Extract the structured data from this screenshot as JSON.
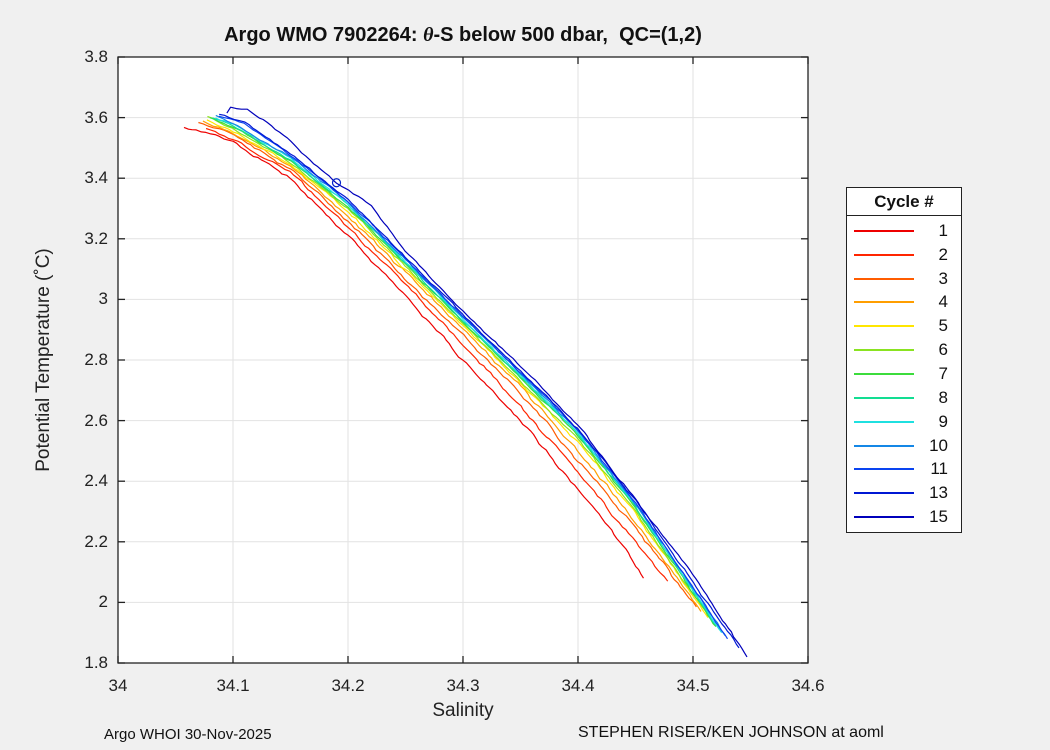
{
  "figure": {
    "background": "#f0f0f0",
    "title": {
      "prefix": "Argo WMO 7902264: ",
      "theta": "θ",
      "suffix": "-S below 500 dbar,  QC=(1,2)"
    },
    "footer_left": "Argo WHOI 30-Nov-2025",
    "footer_right": "STEPHEN RISER/KEN JOHNSON at aoml"
  },
  "chart_data": {
    "type": "line",
    "title": "Argo WMO 7902264: θ-S below 500 dbar,  QC=(1,2)",
    "xlabel": "Salinity",
    "ylabel": "Potential Temperature (˚C)",
    "xlim": [
      34,
      34.6
    ],
    "ylim": [
      1.8,
      3.8
    ],
    "xticks": [
      34,
      34.1,
      34.2,
      34.3,
      34.4,
      34.5,
      34.6
    ],
    "xtick_labels": [
      "34",
      "34.1",
      "34.2",
      "34.3",
      "34.4",
      "34.5",
      "34.6"
    ],
    "yticks": [
      1.8,
      2,
      2.2,
      2.4,
      2.6,
      2.8,
      3,
      3.2,
      3.4,
      3.6,
      3.8
    ],
    "ytick_labels": [
      "1.8",
      "2",
      "2.2",
      "2.4",
      "2.6",
      "2.8",
      "3",
      "3.2",
      "3.4",
      "3.6",
      "3.8"
    ],
    "grid": true,
    "grid_color": "#e2e2e2",
    "axes_color": "#222222",
    "plot_background": "#ffffff",
    "legend_title": "Cycle #",
    "legend_position": "outside-right",
    "marker": {
      "series_name": "15",
      "x": 34.19,
      "y": 3.385,
      "shape": "open-circle",
      "color": "#0020c8"
    },
    "series": [
      {
        "name": "1",
        "color": "#ee0000",
        "points": [
          [
            34.057,
            3.57
          ],
          [
            34.08,
            3.545
          ],
          [
            34.1,
            3.52
          ],
          [
            34.15,
            3.4
          ],
          [
            34.2,
            3.21
          ],
          [
            34.25,
            3.01
          ],
          [
            34.3,
            2.8
          ],
          [
            34.35,
            2.6
          ],
          [
            34.4,
            2.37
          ],
          [
            34.43,
            2.24
          ],
          [
            34.457,
            2.08
          ]
        ]
      },
      {
        "name": "2",
        "color": "#ff2500",
        "points": [
          [
            34.076,
            3.565
          ],
          [
            34.1,
            3.53
          ],
          [
            34.15,
            3.42
          ],
          [
            34.2,
            3.24
          ],
          [
            34.25,
            3.05
          ],
          [
            34.3,
            2.85
          ],
          [
            34.35,
            2.65
          ],
          [
            34.4,
            2.43
          ],
          [
            34.45,
            2.2
          ],
          [
            34.478,
            2.07
          ]
        ]
      },
      {
        "name": "3",
        "color": "#ff5c00",
        "points": [
          [
            34.07,
            3.585
          ],
          [
            34.1,
            3.545
          ],
          [
            34.15,
            3.43
          ],
          [
            34.2,
            3.26
          ],
          [
            34.25,
            3.07
          ],
          [
            34.3,
            2.88
          ],
          [
            34.35,
            2.69
          ],
          [
            34.4,
            2.47
          ],
          [
            34.45,
            2.245
          ],
          [
            34.503,
            1.985
          ]
        ]
      },
      {
        "name": "4",
        "color": "#ff9e00",
        "points": [
          [
            34.074,
            3.59
          ],
          [
            34.1,
            3.55
          ],
          [
            34.15,
            3.44
          ],
          [
            34.2,
            3.275
          ],
          [
            34.25,
            3.09
          ],
          [
            34.3,
            2.9
          ],
          [
            34.35,
            2.71
          ],
          [
            34.4,
            2.5
          ],
          [
            34.45,
            2.27
          ],
          [
            34.507,
            1.97
          ]
        ]
      },
      {
        "name": "5",
        "color": "#ffe600",
        "points": [
          [
            34.078,
            3.595
          ],
          [
            34.1,
            3.555
          ],
          [
            34.15,
            3.445
          ],
          [
            34.2,
            3.29
          ],
          [
            34.25,
            3.1
          ],
          [
            34.3,
            2.915
          ],
          [
            34.35,
            2.725
          ],
          [
            34.4,
            2.53
          ],
          [
            34.45,
            2.29
          ],
          [
            34.513,
            1.95
          ]
        ]
      },
      {
        "name": "6",
        "color": "#8ae321",
        "points": [
          [
            34.078,
            3.605
          ],
          [
            34.1,
            3.565
          ],
          [
            34.15,
            3.45
          ],
          [
            34.2,
            3.3
          ],
          [
            34.25,
            3.11
          ],
          [
            34.3,
            2.92
          ],
          [
            34.35,
            2.73
          ],
          [
            34.4,
            2.54
          ],
          [
            34.45,
            2.3
          ],
          [
            34.518,
            1.93
          ]
        ]
      },
      {
        "name": "7",
        "color": "#3cdc3c",
        "points": [
          [
            34.08,
            3.6
          ],
          [
            34.1,
            3.57
          ],
          [
            34.15,
            3.455
          ],
          [
            34.2,
            3.305
          ],
          [
            34.25,
            3.115
          ],
          [
            34.3,
            2.925
          ],
          [
            34.35,
            2.74
          ],
          [
            34.4,
            2.55
          ],
          [
            34.45,
            2.31
          ],
          [
            34.52,
            1.92
          ]
        ]
      },
      {
        "name": "8",
        "color": "#12dd92",
        "points": [
          [
            34.082,
            3.6
          ],
          [
            34.1,
            3.575
          ],
          [
            34.15,
            3.46
          ],
          [
            34.2,
            3.31
          ],
          [
            34.25,
            3.12
          ],
          [
            34.3,
            2.93
          ],
          [
            34.35,
            2.745
          ],
          [
            34.4,
            2.555
          ],
          [
            34.45,
            2.315
          ],
          [
            34.523,
            1.91
          ]
        ]
      },
      {
        "name": "9",
        "color": "#1fe0e0",
        "points": [
          [
            34.085,
            3.6
          ],
          [
            34.1,
            3.578
          ],
          [
            34.15,
            3.465
          ],
          [
            34.2,
            3.315
          ],
          [
            34.25,
            3.125
          ],
          [
            34.3,
            2.935
          ],
          [
            34.35,
            2.75
          ],
          [
            34.4,
            2.56
          ],
          [
            34.45,
            2.32
          ],
          [
            34.525,
            1.9
          ]
        ]
      },
      {
        "name": "10",
        "color": "#1487e6",
        "points": [
          [
            34.085,
            3.605
          ],
          [
            34.1,
            3.58
          ],
          [
            34.15,
            3.47
          ],
          [
            34.2,
            3.32
          ],
          [
            34.25,
            3.13
          ],
          [
            34.3,
            2.94
          ],
          [
            34.35,
            2.755
          ],
          [
            34.4,
            2.565
          ],
          [
            34.45,
            2.325
          ],
          [
            34.528,
            1.89
          ]
        ]
      },
      {
        "name": "11",
        "color": "#0a44f0",
        "points": [
          [
            34.088,
            3.605
          ],
          [
            34.11,
            3.58
          ],
          [
            34.15,
            3.475
          ],
          [
            34.2,
            3.325
          ],
          [
            34.25,
            3.135
          ],
          [
            34.3,
            2.945
          ],
          [
            34.35,
            2.76
          ],
          [
            34.4,
            2.57
          ],
          [
            34.45,
            2.33
          ],
          [
            34.53,
            1.88
          ]
        ]
      },
      {
        "name": "13",
        "color": "#0018d4",
        "points": [
          [
            34.088,
            3.61
          ],
          [
            34.11,
            3.585
          ],
          [
            34.15,
            3.48
          ],
          [
            34.2,
            3.33
          ],
          [
            34.25,
            3.14
          ],
          [
            34.3,
            2.95
          ],
          [
            34.35,
            2.765
          ],
          [
            34.4,
            2.575
          ],
          [
            34.45,
            2.335
          ],
          [
            34.54,
            1.85
          ]
        ]
      },
      {
        "name": "15",
        "color": "#0000bb",
        "points": [
          [
            34.095,
            3.615
          ],
          [
            34.098,
            3.632
          ],
          [
            34.112,
            3.628
          ],
          [
            34.13,
            3.585
          ],
          [
            34.15,
            3.52
          ],
          [
            34.17,
            3.45
          ],
          [
            34.19,
            3.385
          ],
          [
            34.22,
            3.31
          ],
          [
            34.25,
            3.16
          ],
          [
            34.3,
            2.96
          ],
          [
            34.35,
            2.78
          ],
          [
            34.4,
            2.585
          ],
          [
            34.45,
            2.34
          ],
          [
            34.5,
            2.09
          ],
          [
            34.547,
            1.82
          ]
        ]
      }
    ]
  }
}
